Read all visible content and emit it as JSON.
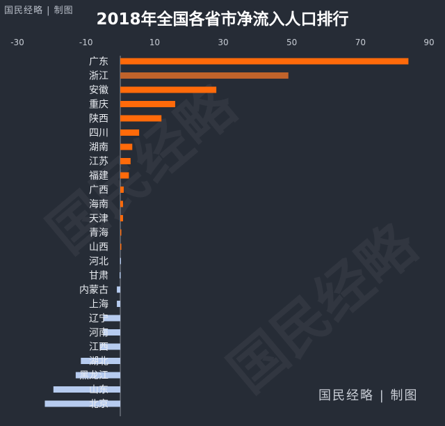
{
  "branding": {
    "top": "国民经略 | 制图",
    "bottom": "国民经略 | 制图",
    "watermark": "国民经略"
  },
  "colors": {
    "background": "#262c36",
    "positive": "#ff6a0a",
    "highlight": "#c0632b",
    "negative": "#b6cbef",
    "axis": "#c7ccd4",
    "label": "#e8ebf0"
  },
  "chart_data": {
    "type": "bar",
    "orientation": "horizontal",
    "title": "2018年全国各省市净流入人口排行",
    "xlim": [
      -30,
      90
    ],
    "xticks": [
      -30,
      -10,
      10,
      30,
      50,
      70,
      90
    ],
    "xaxis_position": "top",
    "grid": false,
    "legend": "none",
    "categories": [
      "广东",
      "浙江",
      "安徽",
      "重庆",
      "陕西",
      "四川",
      "湖南",
      "江苏",
      "福建",
      "广西",
      "海南",
      "天津",
      "青海",
      "山西",
      "河北",
      "甘肃",
      "内蒙古",
      "上海",
      "辽宁",
      "河南",
      "江西",
      "湖北",
      "黑龙江",
      "山东",
      "北京"
    ],
    "values": [
      84,
      49,
      28,
      16,
      12,
      5.5,
      3.5,
      3,
      2.5,
      1,
      0.8,
      0.8,
      0.2,
      0.1,
      -0.1,
      -0.2,
      -1,
      -1,
      -5,
      -5,
      -6,
      -11.5,
      -13,
      -19.5,
      -22
    ]
  }
}
